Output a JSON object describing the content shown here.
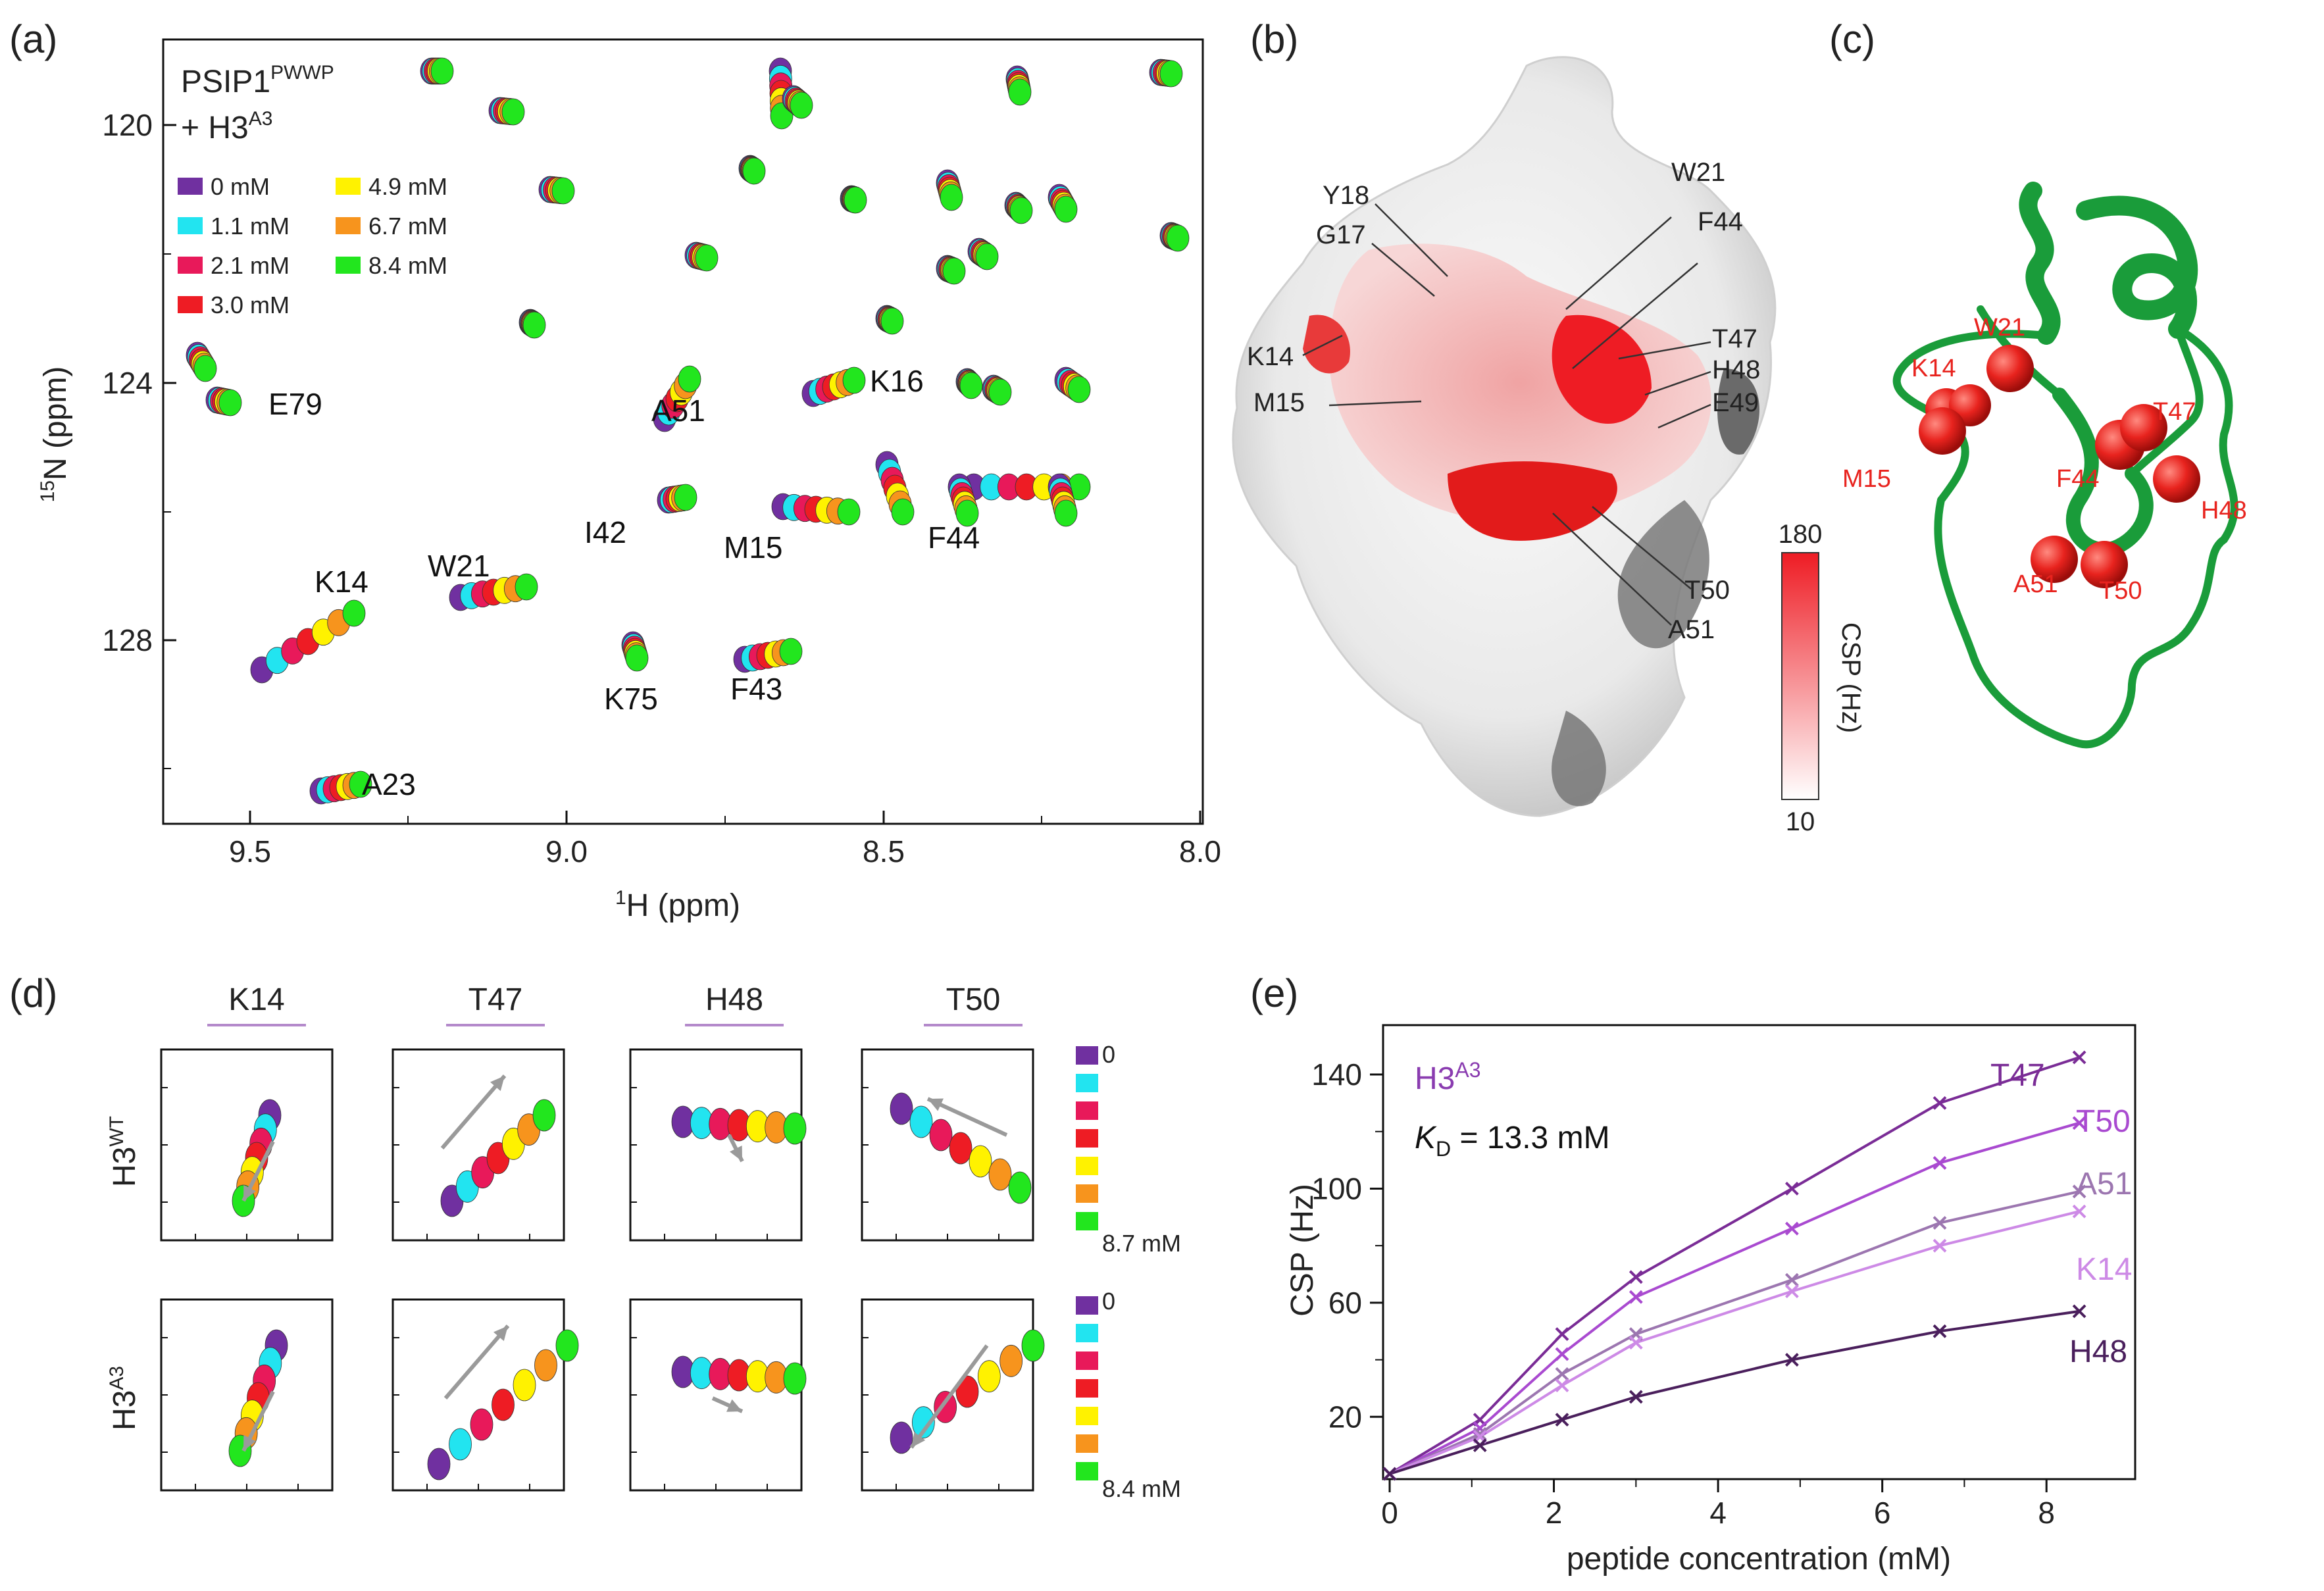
{
  "panels": {
    "a": "(a)",
    "b": "(b)",
    "c": "(c)",
    "d": "(d)",
    "e": "(e)"
  },
  "panel_a": {
    "title_main": "PSIP1",
    "title_sup": "PWWP",
    "title_line2": "+ H3",
    "title_line2_sup": "A3",
    "legend": [
      {
        "label": "0 mM",
        "color": "#7030a0"
      },
      {
        "label": "1.1 mM",
        "color": "#22e4f0"
      },
      {
        "label": "2.1 mM",
        "color": "#e8195a"
      },
      {
        "label": "3.0 mM",
        "color": "#ee1c24"
      },
      {
        "label": "4.9 mM",
        "color": "#fff200"
      },
      {
        "label": "6.7 mM",
        "color": "#f7941d"
      },
      {
        "label": "8.4 mM",
        "color": "#22e61e"
      }
    ],
    "y_ticks": [
      "120",
      "124",
      "128"
    ],
    "x_ticks": [
      "9.5",
      "9.0",
      "8.5",
      "8.0"
    ],
    "ylabel_sup": "15",
    "ylabel": "N (ppm)",
    "xlabel_sup": "1",
    "xlabel": "H (ppm)",
    "residues": [
      "E79",
      "A51",
      "K16",
      "I42",
      "M15",
      "F44",
      "K14",
      "W21",
      "K75",
      "F43",
      "A23"
    ]
  },
  "panel_b": {
    "labels": [
      "Y18",
      "G17",
      "W21",
      "F44",
      "K14",
      "T47",
      "H48",
      "M15",
      "E49",
      "T50",
      "A51"
    ],
    "colorbar_max": "180",
    "colorbar_min": "10",
    "colorbar_label": "CSP (Hz)"
  },
  "panel_c": {
    "labels": [
      "W21",
      "K14",
      "M15",
      "F44",
      "T47",
      "H48",
      "A51",
      "T50"
    ]
  },
  "panel_d": {
    "columns": [
      "K14",
      "T47",
      "H48",
      "T50"
    ],
    "rows": [
      {
        "label": "H3",
        "sup": "WT",
        "legend_top": "0",
        "legend_bottom": "8.7 mM"
      },
      {
        "label": "H3",
        "sup": "A3",
        "legend_top": "0",
        "legend_bottom": "8.4 mM"
      }
    ],
    "legend_colors": [
      "#7030a0",
      "#22e4f0",
      "#e8195a",
      "#ee1c24",
      "#fff200",
      "#f7941d",
      "#22e61e"
    ]
  },
  "chart_data": {
    "type": "scatter",
    "title": "",
    "annotation_main": "H3",
    "annotation_sup": "A3",
    "kd_label": "K",
    "kd_sub": "D",
    "kd_value": " = 13.3 mM",
    "xlabel": "peptide concentration (mM)",
    "ylabel": "CSP (Hz)",
    "xlim": [
      0,
      9
    ],
    "ylim": [
      0,
      155
    ],
    "x_ticks": [
      0,
      2,
      4,
      6,
      8
    ],
    "y_ticks": [
      20,
      60,
      100,
      140
    ],
    "x": [
      0,
      1.1,
      2.1,
      3.0,
      4.9,
      6.7,
      8.4
    ],
    "series": [
      {
        "name": "T47",
        "color": "#7a2c96",
        "values": [
          0,
          19,
          49,
          69,
          100,
          130,
          146
        ]
      },
      {
        "name": "T50",
        "color": "#a94ad0",
        "values": [
          0,
          16,
          42,
          62,
          86,
          109,
          123
        ]
      },
      {
        "name": "A51",
        "color": "#9c76b0",
        "values": [
          0,
          14,
          35,
          49,
          68,
          88,
          99
        ]
      },
      {
        "name": "K14",
        "color": "#cd8ae6",
        "values": [
          0,
          13,
          31,
          46,
          64,
          80,
          92
        ]
      },
      {
        "name": "H48",
        "color": "#4a1f5c",
        "values": [
          0,
          10,
          19,
          27,
          40,
          50,
          57
        ]
      }
    ]
  }
}
